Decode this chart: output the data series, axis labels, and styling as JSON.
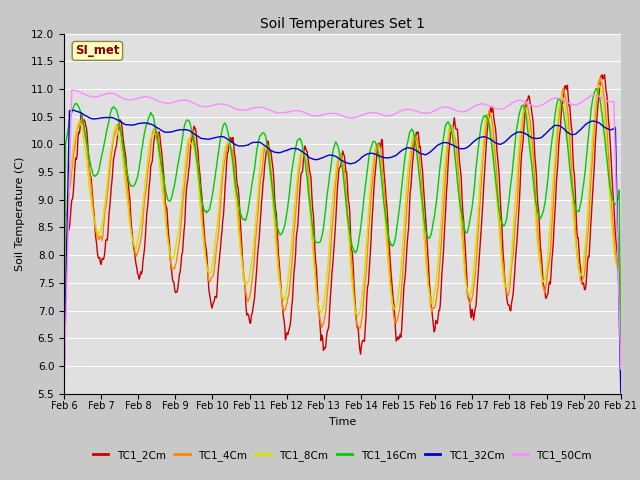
{
  "title": "Soil Temperatures Set 1",
  "xlabel": "Time",
  "ylabel": "Soil Temperature (C)",
  "ylim": [
    5.5,
    12.0
  ],
  "yticks": [
    5.5,
    6.0,
    6.5,
    7.0,
    7.5,
    8.0,
    8.5,
    9.0,
    9.5,
    10.0,
    10.5,
    11.0,
    11.5,
    12.0
  ],
  "fig_bg_color": "#c8c8c8",
  "plot_bg_color": "#e0e0e0",
  "annotation_label": "SI_met",
  "annotation_color": "#8B0000",
  "annotation_bg": "#ffffc0",
  "annotation_border": "#888844",
  "legend_labels": [
    "TC1_2Cm",
    "TC1_4Cm",
    "TC1_8Cm",
    "TC1_16Cm",
    "TC1_32Cm",
    "TC1_50Cm"
  ],
  "legend_colors": [
    "#cc0000",
    "#ff8800",
    "#dddd00",
    "#00cc00",
    "#0000cc",
    "#ff88ff"
  ],
  "lw": 1.0,
  "xtick_labels": [
    "Feb 6",
    "Feb 7",
    "Feb 8",
    "Feb 9",
    "Feb 10",
    "Feb 11",
    "Feb 12",
    "Feb 13",
    "Feb 14",
    "Feb 15",
    "Feb 16",
    "Feb 17",
    "Feb 18",
    "Feb 19",
    "Feb 20",
    "Feb 21"
  ]
}
